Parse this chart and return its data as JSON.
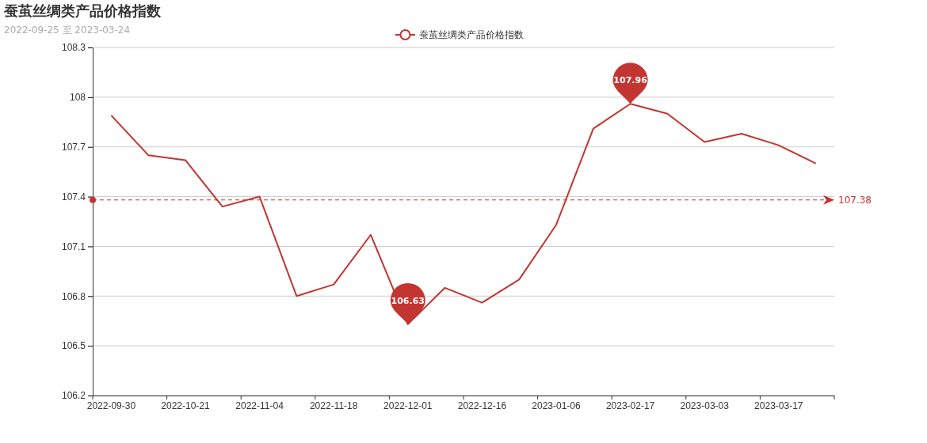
{
  "chart_data": {
    "type": "line",
    "title": "蚕茧丝绸类产品价格指数",
    "subtitle": "2022-09-25 至 2023-03-24",
    "categories": [
      "2022-09-30",
      null,
      "2022-10-21",
      null,
      "2022-11-04",
      null,
      "2022-11-18",
      null,
      "2022-12-01",
      null,
      "2022-12-16",
      null,
      "2023-01-06",
      null,
      "2023-02-17",
      null,
      "2023-03-03",
      null,
      "2023-03-17",
      null
    ],
    "series": [
      {
        "name": "蚕茧丝绸类产品价格指数",
        "color": "#c23531",
        "values": [
          107.89,
          107.65,
          107.62,
          107.34,
          107.4,
          106.8,
          106.87,
          107.17,
          106.63,
          106.85,
          106.76,
          106.9,
          107.23,
          107.81,
          107.96,
          107.9,
          107.73,
          107.78,
          107.71,
          107.6
        ]
      }
    ],
    "ylim": [
      106.2,
      108.3
    ],
    "yticks": [
      106.2,
      106.5,
      106.8,
      107.1,
      107.4,
      107.7,
      108,
      108.3
    ],
    "grid": "y",
    "legend": "top",
    "marker": "none",
    "line_style": "solid",
    "ref_lines": [
      {
        "axis": "y",
        "value": 107.38,
        "label": "107.38",
        "color": "#c23531",
        "line_style": "dashed"
      }
    ],
    "annotations": [
      {
        "text": "107.96",
        "x": "2023-02-17",
        "y": 107.96
      },
      {
        "text": "106.63",
        "x": "2022-12-01",
        "y": 106.63
      }
    ]
  }
}
